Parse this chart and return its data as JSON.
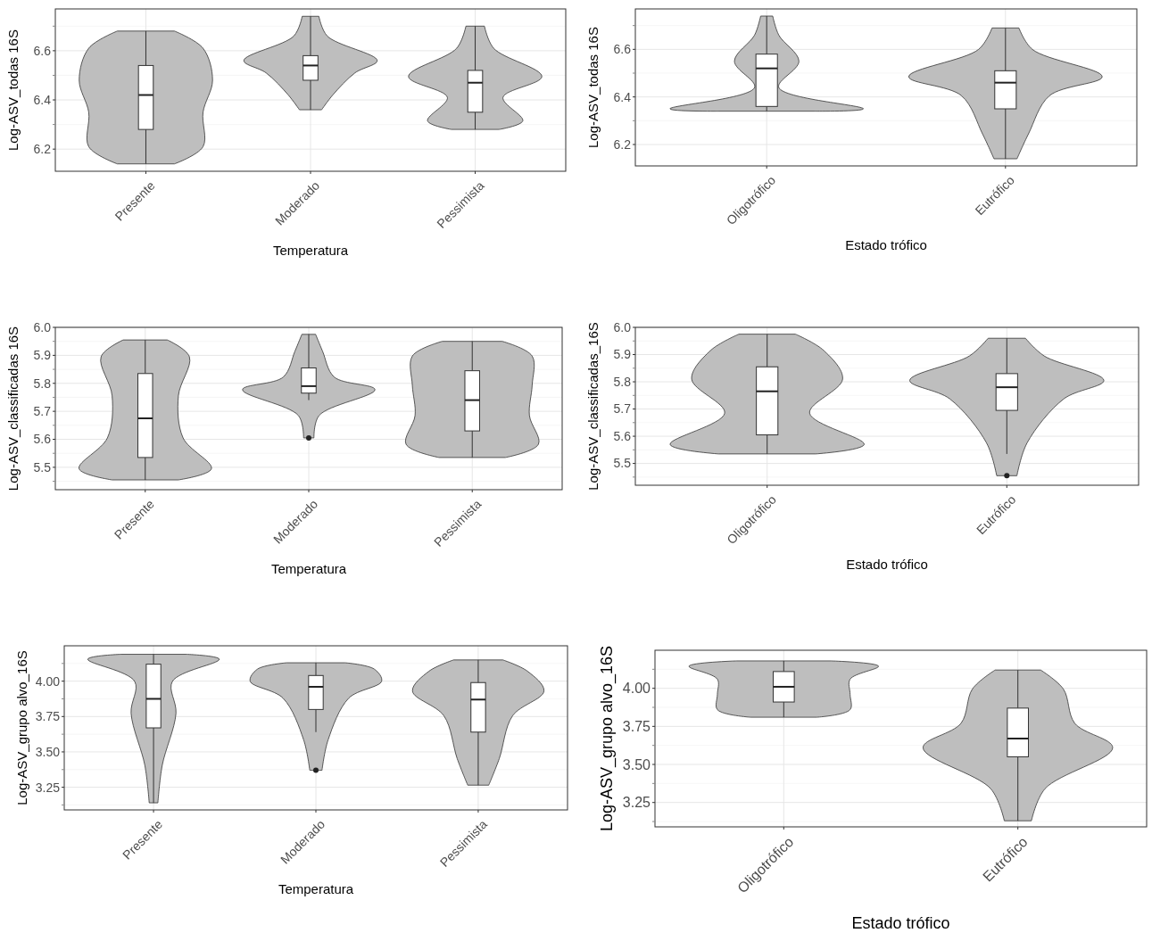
{
  "chart_data": [
    {
      "type": "box",
      "categories": [
        "Presente",
        "Moderado",
        "Pessimista"
      ],
      "xlabel": "Temperatura",
      "ylabel": "Log-ASV_todas 16S",
      "ylim": [
        6.11,
        6.77
      ],
      "yticks": [
        6.2,
        {
          "value": 6.3,
          "label": null
        },
        6.4,
        {
          "value": 6.5,
          "label": null
        },
        6.6,
        {
          "value": 6.7,
          "label": null
        }
      ],
      "grid": true,
      "series": [
        {
          "color": "#ffffff",
          "boxes": [
            {
              "low": 6.14,
              "q1": 6.28,
              "median": 6.42,
              "q3": 6.54,
              "high": 6.68
            },
            {
              "low": 6.36,
              "q1": 6.48,
              "median": 6.54,
              "q3": 6.58,
              "high": 6.74
            },
            {
              "low": 6.28,
              "q1": 6.35,
              "median": 6.47,
              "q3": 6.52,
              "high": 6.7
            }
          ]
        }
      ]
    },
    {
      "type": "box",
      "categories": [
        "Oligotrófico",
        "Eutrófico"
      ],
      "xlabel": "Estado trófico",
      "ylabel": "Log-ASV_todas 16S",
      "ylim": [
        6.11,
        6.77
      ],
      "yticks": [
        6.2,
        {
          "value": 6.3,
          "label": null
        },
        6.4,
        {
          "value": 6.5,
          "label": null
        },
        6.6,
        {
          "value": 6.7,
          "label": null
        }
      ],
      "grid": true,
      "series": [
        {
          "color": "#ffffff",
          "boxes": [
            {
              "low": 6.34,
              "q1": 6.36,
              "median": 6.52,
              "q3": 6.58,
              "high": 6.74
            },
            {
              "low": 6.14,
              "q1": 6.35,
              "median": 6.46,
              "q3": 6.51,
              "high": 6.69
            }
          ]
        }
      ]
    },
    {
      "type": "box",
      "categories": [
        "Presente",
        "Moderado",
        "Pessimista"
      ],
      "xlabel": "Temperatura",
      "ylabel": "Log-ASV_classificadas 16S",
      "ylim": [
        5.42,
        6.0
      ],
      "yticks": [
        {
          "value": 5.45,
          "label": null
        },
        5.5,
        {
          "value": 5.55,
          "label": null
        },
        5.6,
        {
          "value": 5.65,
          "label": null
        },
        5.7,
        {
          "value": 5.75,
          "label": null
        },
        5.8,
        {
          "value": 5.85,
          "label": null
        },
        5.9,
        {
          "value": 5.95,
          "label": null
        },
        {
          "value": 6,
          "label": "6.0"
        }
      ],
      "grid": true,
      "series": [
        {
          "color": "#ffffff",
          "boxes": [
            {
              "low": 5.455,
              "q1": 5.535,
              "median": 5.675,
              "q3": 5.835,
              "high": 5.955
            },
            {
              "low": 5.74,
              "q1": 5.765,
              "median": 5.79,
              "q3": 5.855,
              "high": 5.975,
              "outliers": [
                5.605
              ]
            },
            {
              "low": 5.535,
              "q1": 5.63,
              "median": 5.74,
              "q3": 5.845,
              "high": 5.95
            }
          ]
        }
      ]
    },
    {
      "type": "box",
      "categories": [
        "Oligotrófico",
        "Eutrófico"
      ],
      "xlabel": "Estado trófico",
      "ylabel": "Log-ASV_classificadas_16S",
      "ylim": [
        5.42,
        6.0
      ],
      "yticks": [
        {
          "value": 5.45,
          "label": null
        },
        5.5,
        {
          "value": 5.55,
          "label": null
        },
        5.6,
        {
          "value": 5.65,
          "label": null
        },
        5.7,
        {
          "value": 5.75,
          "label": null
        },
        5.8,
        {
          "value": 5.85,
          "label": null
        },
        5.9,
        {
          "value": 5.95,
          "label": null
        },
        {
          "value": 6,
          "label": "6.0"
        }
      ],
      "grid": true,
      "series": [
        {
          "color": "#ffffff",
          "boxes": [
            {
              "low": 5.535,
              "q1": 5.605,
              "median": 5.765,
              "q3": 5.855,
              "high": 5.975
            },
            {
              "low": 5.535,
              "q1": 5.695,
              "median": 5.78,
              "q3": 5.83,
              "high": 5.96,
              "outliers": [
                5.455
              ]
            }
          ]
        }
      ]
    },
    {
      "type": "box",
      "categories": [
        "Presente",
        "Moderado",
        "Pessimista"
      ],
      "xlabel": "Temperatura",
      "ylabel": "Log-ASV_grupo alvo_16S",
      "ylim": [
        3.09,
        4.25
      ],
      "yticks": [
        {
          "value": 3.125,
          "label": null
        },
        3.25,
        {
          "value": 3.375,
          "label": null
        },
        {
          "value": 3.5,
          "label": "3.50"
        },
        {
          "value": 3.625,
          "label": null
        },
        3.75,
        {
          "value": 3.875,
          "label": null
        },
        {
          "value": 4,
          "label": "4.00"
        },
        {
          "value": 4.125,
          "label": null
        }
      ],
      "grid": true,
      "series": [
        {
          "color": "#ffffff",
          "boxes": [
            {
              "low": 3.14,
              "q1": 3.67,
              "median": 3.875,
              "q3": 4.12,
              "high": 4.19
            },
            {
              "low": 3.64,
              "q1": 3.8,
              "median": 3.96,
              "q3": 4.04,
              "high": 4.13,
              "outliers": [
                3.37
              ]
            },
            {
              "low": 3.265,
              "q1": 3.64,
              "median": 3.87,
              "q3": 3.99,
              "high": 4.15
            }
          ]
        }
      ]
    },
    {
      "type": "box",
      "categories": [
        "Oligotrófico",
        "Eutrófico"
      ],
      "xlabel": "Estado trófico",
      "ylabel": "Log-ASV_grupo alvo_16S",
      "ylim": [
        3.09,
        4.25
      ],
      "yticks": [
        {
          "value": 3.125,
          "label": null
        },
        3.25,
        {
          "value": 3.375,
          "label": null
        },
        {
          "value": 3.5,
          "label": "3.50"
        },
        {
          "value": 3.625,
          "label": null
        },
        3.75,
        {
          "value": 3.875,
          "label": null
        },
        {
          "value": 4,
          "label": "4.00"
        },
        {
          "value": 4.125,
          "label": null
        }
      ],
      "grid": true,
      "series": [
        {
          "color": "#ffffff",
          "boxes": [
            {
              "low": 3.81,
              "q1": 3.91,
              "median": 4.01,
              "q3": 4.11,
              "high": 4.18
            },
            {
              "low": 3.13,
              "q1": 3.55,
              "median": 3.67,
              "q3": 3.87,
              "high": 4.12
            }
          ]
        }
      ]
    }
  ]
}
